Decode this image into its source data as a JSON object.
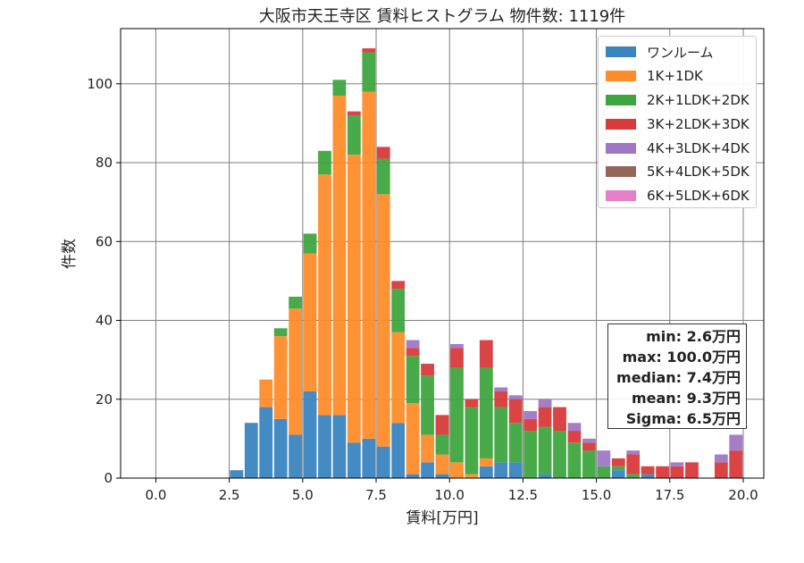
{
  "chart_data": {
    "type": "bar",
    "stacked": true,
    "title": "大阪市天王寺区 賃料ヒストグラム  物件数: 1119件",
    "xlabel": "賃料[万円]",
    "ylabel": "件数",
    "xlim": [
      -1.2,
      20.7
    ],
    "ylim": [
      0,
      114
    ],
    "xticks": [
      "0.0",
      "2.5",
      "5.0",
      "7.5",
      "10.0",
      "12.5",
      "15.0",
      "17.5",
      "20.0"
    ],
    "xtick_values": [
      0,
      2.5,
      5,
      7.5,
      10,
      12.5,
      15,
      17.5,
      20
    ],
    "yticks": [
      0,
      20,
      40,
      60,
      80,
      100
    ],
    "grid": true,
    "legend_position": "top-right",
    "bin_starts": [
      2.5,
      3.0,
      3.5,
      4.0,
      4.5,
      5.0,
      5.5,
      6.0,
      6.5,
      7.0,
      7.5,
      8.0,
      8.5,
      9.0,
      9.5,
      10.0,
      10.5,
      11.0,
      11.5,
      12.0,
      12.5,
      13.0,
      13.5,
      14.0,
      14.5,
      15.0,
      15.5,
      16.0,
      16.5,
      17.0,
      17.5,
      18.0,
      18.5,
      19.0,
      19.5
    ],
    "bin_width": 0.5,
    "series": [
      {
        "name": "ワンルーム",
        "color": "#3a84c0",
        "values": [
          2,
          14,
          18,
          15,
          11,
          22,
          16,
          16,
          9,
          10,
          8,
          14,
          1,
          4,
          1,
          0,
          0,
          3,
          4,
          4,
          0,
          1,
          0,
          0,
          0,
          0,
          2,
          0,
          1,
          0,
          0,
          0,
          0,
          0,
          0
        ]
      },
      {
        "name": "1K+1DK",
        "color": "#ff8c2a",
        "values": [
          0,
          0,
          7,
          21,
          32,
          35,
          61,
          81,
          73,
          88,
          64,
          23,
          18,
          7,
          5,
          4,
          1,
          2,
          0,
          0,
          0,
          0,
          0,
          0,
          0,
          0,
          0,
          0,
          0,
          0,
          0,
          0,
          0,
          0,
          0
        ]
      },
      {
        "name": "2K+1LDK+2DK",
        "color": "#3ea53e",
        "values": [
          0,
          0,
          0,
          2,
          3,
          5,
          6,
          4,
          10,
          10,
          9,
          11,
          12,
          15,
          5,
          24,
          17,
          23,
          14,
          10,
          12,
          12,
          12,
          9,
          7,
          3,
          1,
          1,
          0,
          0,
          0,
          0,
          0,
          0,
          0
        ]
      },
      {
        "name": "3K+2LDK+3DK",
        "color": "#d93a3a",
        "values": [
          0,
          0,
          0,
          0,
          0,
          0,
          0,
          0,
          1,
          1,
          3,
          2,
          2,
          3,
          5,
          5,
          2,
          7,
          4,
          6,
          3,
          5,
          6,
          3,
          2,
          0,
          2,
          5,
          2,
          3,
          3,
          4,
          0,
          4,
          7
        ]
      },
      {
        "name": "4K+3LDK+4DK",
        "color": "#a077c5",
        "values": [
          0,
          0,
          0,
          0,
          0,
          0,
          0,
          0,
          0,
          0,
          0,
          0,
          2,
          0,
          0,
          1,
          0,
          0,
          1,
          1,
          2,
          2,
          0,
          2,
          1,
          4,
          0,
          1,
          0,
          0,
          1,
          0,
          0,
          2,
          4
        ]
      },
      {
        "name": "5K+4LDK+5DK",
        "color": "#93665a",
        "values": [
          0,
          0,
          0,
          0,
          0,
          0,
          0,
          0,
          0,
          0,
          0,
          0,
          0,
          0,
          0,
          0,
          0,
          0,
          0,
          0,
          0,
          0,
          0,
          0,
          0,
          0,
          0,
          0,
          0,
          0,
          0,
          0,
          0,
          0,
          0
        ]
      },
      {
        "name": "6K+5LDK+6DK",
        "color": "#e47fc8",
        "values": [
          0,
          0,
          0,
          0,
          0,
          0,
          0,
          0,
          0,
          0,
          0,
          0,
          0,
          0,
          0,
          0,
          0,
          0,
          0,
          0,
          0,
          0,
          0,
          0,
          0,
          0,
          0,
          0,
          0,
          0,
          0,
          0,
          0,
          0,
          0
        ]
      }
    ],
    "stats": {
      "min": "min: 2.6万円",
      "max": "max: 100.0万円",
      "median": "median: 7.4万円",
      "mean": "mean: 9.3万円",
      "sigma": "Sigma: 6.5万円"
    }
  }
}
